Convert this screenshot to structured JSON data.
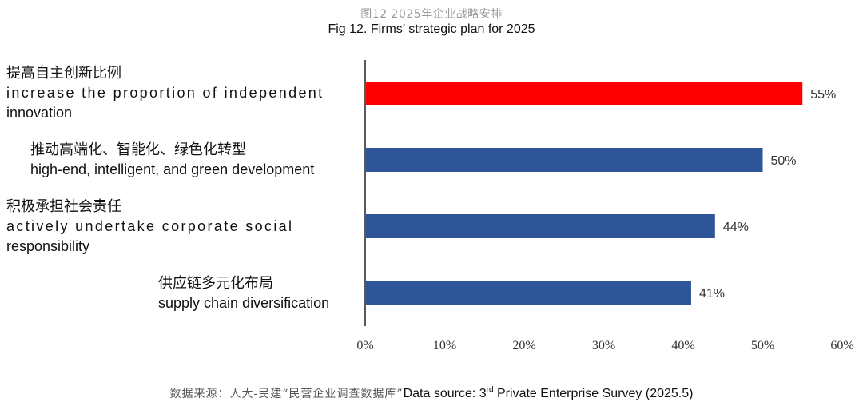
{
  "title_cn": "图12 2025年企业战略安排",
  "title_en": "Fig 12. Firms’ strategic plan for 2025",
  "chart_data": {
    "type": "bar",
    "orientation": "horizontal",
    "categories": [
      {
        "cn": "提高自主创新比例",
        "en": [
          "increase the proportion of independent",
          "innovation"
        ]
      },
      {
        "cn": "推动高端化、智能化、绿色化转型",
        "en": [
          "high-end, intelligent, and green development"
        ]
      },
      {
        "cn": "积极承担社会责任",
        "en": [
          "actively undertake corporate social",
          "responsibility"
        ]
      },
      {
        "cn": "供应链多元化布局",
        "en": [
          "supply chain diversification"
        ]
      }
    ],
    "values": [
      55,
      50,
      44,
      41
    ],
    "value_labels": [
      "55%",
      "50%",
      "44%",
      "41%"
    ],
    "colors": [
      "#ff0000",
      "#2e5597",
      "#2e5597",
      "#2e5597"
    ],
    "xlim": [
      0,
      60
    ],
    "xticks": [
      "0%",
      "10%",
      "20%",
      "30%",
      "40%",
      "50%",
      "60%"
    ],
    "grid": false,
    "legend": "none"
  },
  "footer": {
    "cn": "数据来源：人大-民建“民营企业调查数据库”",
    "en_prefix": "Data source: 3",
    "en_sup": "rd",
    "en_suffix": " Private Enterprise Survey (2025.5)"
  }
}
